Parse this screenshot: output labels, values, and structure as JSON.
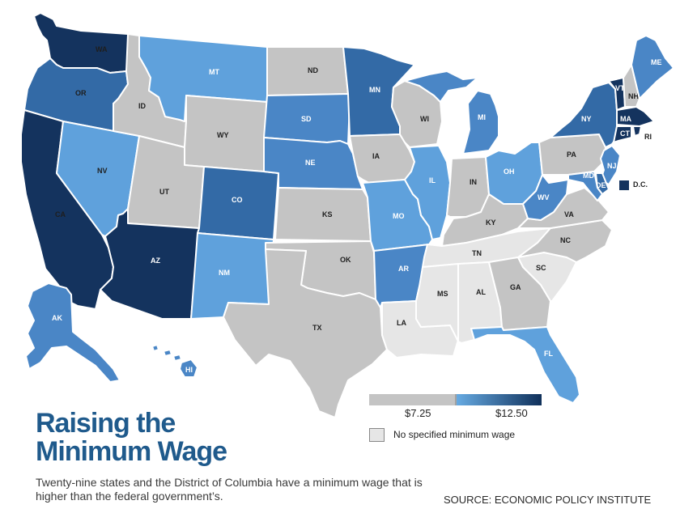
{
  "title_line1": "Raising the",
  "title_line2": "Minimum Wage",
  "subtitle": "Twenty-nine states and the District of Columbia have a minimum wage that is higher than the federal government’s.",
  "source": "SOURCE: ECONOMIC POLICY INSTITUTE",
  "legend": {
    "low_label": "$7.25",
    "high_label": "$12.50",
    "none_label": "No specified minimum wage",
    "colors": {
      "none": "#e6e6e6",
      "federal": "#c4c4c4",
      "light": "#5fa1dc",
      "mid": "#4a86c6",
      "dark": "#336aa6",
      "darkest": "#14335e"
    }
  },
  "dc": {
    "label": "D.C.",
    "tier": "darkest"
  },
  "states": [
    {
      "abbr": "WA",
      "tier": "darkest"
    },
    {
      "abbr": "OR",
      "tier": "dark"
    },
    {
      "abbr": "CA",
      "tier": "darkest"
    },
    {
      "abbr": "NV",
      "tier": "light"
    },
    {
      "abbr": "ID",
      "tier": "federal"
    },
    {
      "abbr": "MT",
      "tier": "light"
    },
    {
      "abbr": "WY",
      "tier": "federal"
    },
    {
      "abbr": "UT",
      "tier": "federal"
    },
    {
      "abbr": "AZ",
      "tier": "darkest"
    },
    {
      "abbr": "CO",
      "tier": "dark"
    },
    {
      "abbr": "NM",
      "tier": "light"
    },
    {
      "abbr": "ND",
      "tier": "federal"
    },
    {
      "abbr": "SD",
      "tier": "mid"
    },
    {
      "abbr": "NE",
      "tier": "mid"
    },
    {
      "abbr": "KS",
      "tier": "federal"
    },
    {
      "abbr": "OK",
      "tier": "federal"
    },
    {
      "abbr": "TX",
      "tier": "federal"
    },
    {
      "abbr": "MN",
      "tier": "dark"
    },
    {
      "abbr": "IA",
      "tier": "federal"
    },
    {
      "abbr": "MO",
      "tier": "light"
    },
    {
      "abbr": "AR",
      "tier": "mid"
    },
    {
      "abbr": "LA",
      "tier": "none"
    },
    {
      "abbr": "WI",
      "tier": "federal"
    },
    {
      "abbr": "IL",
      "tier": "light"
    },
    {
      "abbr": "MI",
      "tier": "mid"
    },
    {
      "abbr": "IN",
      "tier": "federal"
    },
    {
      "abbr": "OH",
      "tier": "light"
    },
    {
      "abbr": "KY",
      "tier": "federal"
    },
    {
      "abbr": "TN",
      "tier": "none"
    },
    {
      "abbr": "MS",
      "tier": "none"
    },
    {
      "abbr": "AL",
      "tier": "none"
    },
    {
      "abbr": "GA",
      "tier": "federal"
    },
    {
      "abbr": "FL",
      "tier": "light"
    },
    {
      "abbr": "SC",
      "tier": "none"
    },
    {
      "abbr": "NC",
      "tier": "federal"
    },
    {
      "abbr": "VA",
      "tier": "federal"
    },
    {
      "abbr": "WV",
      "tier": "mid"
    },
    {
      "abbr": "PA",
      "tier": "federal"
    },
    {
      "abbr": "NY",
      "tier": "dark"
    },
    {
      "abbr": "VT",
      "tier": "darkest"
    },
    {
      "abbr": "NH",
      "tier": "federal"
    },
    {
      "abbr": "ME",
      "tier": "mid"
    },
    {
      "abbr": "MA",
      "tier": "darkest"
    },
    {
      "abbr": "CT",
      "tier": "darkest"
    },
    {
      "abbr": "RI",
      "tier": "darkest"
    },
    {
      "abbr": "NJ",
      "tier": "mid"
    },
    {
      "abbr": "DE",
      "tier": "dark"
    },
    {
      "abbr": "MD",
      "tier": "mid"
    },
    {
      "abbr": "AK",
      "tier": "mid"
    },
    {
      "abbr": "HI",
      "tier": "mid"
    }
  ]
}
